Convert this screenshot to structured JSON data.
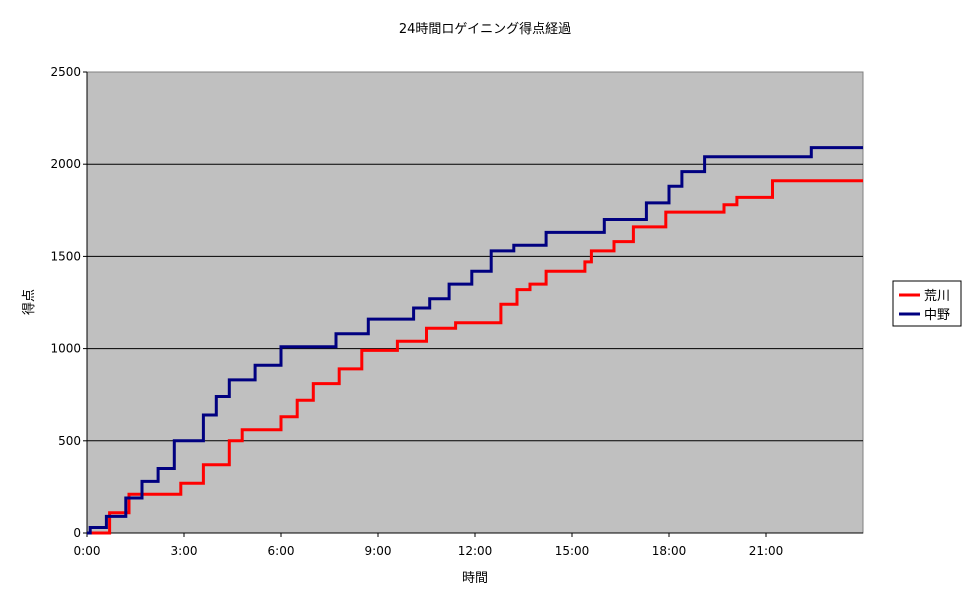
{
  "chart_data": {
    "type": "line",
    "title": "24時間ロゲイニング得点経過",
    "xlabel": "時間",
    "ylabel": "得点",
    "xlim": [
      0,
      24
    ],
    "ylim": [
      0,
      2500
    ],
    "x_ticks": [
      0,
      3,
      6,
      9,
      12,
      15,
      18,
      21
    ],
    "x_tick_labels": [
      "0:00",
      "3:00",
      "6:00",
      "9:00",
      "12:00",
      "15:00",
      "18:00",
      "21:00"
    ],
    "y_ticks": [
      0,
      500,
      1000,
      1500,
      2000,
      2500
    ],
    "y_tick_labels": [
      "0",
      "500",
      "1000",
      "1500",
      "2000",
      "2500"
    ],
    "grid": "horizontal",
    "step": true,
    "plot_background": "#c0c0c0",
    "legend_position": "right",
    "series": [
      {
        "name": "荒川",
        "color": "#ff0000",
        "points": [
          [
            0.0,
            0
          ],
          [
            0.7,
            0
          ],
          [
            0.7,
            110
          ],
          [
            1.3,
            110
          ],
          [
            1.3,
            210
          ],
          [
            2.9,
            210
          ],
          [
            2.9,
            270
          ],
          [
            3.6,
            270
          ],
          [
            3.6,
            370
          ],
          [
            4.4,
            370
          ],
          [
            4.4,
            500
          ],
          [
            4.8,
            500
          ],
          [
            4.8,
            560
          ],
          [
            6.0,
            560
          ],
          [
            6.0,
            630
          ],
          [
            6.5,
            630
          ],
          [
            6.5,
            720
          ],
          [
            7.0,
            720
          ],
          [
            7.0,
            810
          ],
          [
            7.8,
            810
          ],
          [
            7.8,
            890
          ],
          [
            8.5,
            890
          ],
          [
            8.5,
            990
          ],
          [
            9.6,
            990
          ],
          [
            9.6,
            1040
          ],
          [
            10.5,
            1040
          ],
          [
            10.5,
            1110
          ],
          [
            11.4,
            1110
          ],
          [
            11.4,
            1140
          ],
          [
            12.8,
            1140
          ],
          [
            12.8,
            1240
          ],
          [
            13.3,
            1240
          ],
          [
            13.3,
            1320
          ],
          [
            13.7,
            1320
          ],
          [
            13.7,
            1350
          ],
          [
            14.2,
            1350
          ],
          [
            14.2,
            1420
          ],
          [
            15.4,
            1420
          ],
          [
            15.4,
            1470
          ],
          [
            15.6,
            1470
          ],
          [
            15.6,
            1530
          ],
          [
            16.3,
            1530
          ],
          [
            16.3,
            1580
          ],
          [
            16.9,
            1580
          ],
          [
            16.9,
            1660
          ],
          [
            17.9,
            1660
          ],
          [
            17.9,
            1740
          ],
          [
            19.7,
            1740
          ],
          [
            19.7,
            1780
          ],
          [
            20.1,
            1780
          ],
          [
            20.1,
            1820
          ],
          [
            21.2,
            1820
          ],
          [
            21.2,
            1910
          ],
          [
            24.0,
            1910
          ]
        ]
      },
      {
        "name": "中野",
        "color": "#000080",
        "points": [
          [
            0.0,
            0
          ],
          [
            0.1,
            0
          ],
          [
            0.1,
            30
          ],
          [
            0.6,
            30
          ],
          [
            0.6,
            90
          ],
          [
            1.2,
            90
          ],
          [
            1.2,
            190
          ],
          [
            1.7,
            190
          ],
          [
            1.7,
            280
          ],
          [
            2.2,
            280
          ],
          [
            2.2,
            350
          ],
          [
            2.7,
            350
          ],
          [
            2.7,
            500
          ],
          [
            3.6,
            500
          ],
          [
            3.6,
            640
          ],
          [
            4.0,
            640
          ],
          [
            4.0,
            740
          ],
          [
            4.4,
            740
          ],
          [
            4.4,
            830
          ],
          [
            5.2,
            830
          ],
          [
            5.2,
            910
          ],
          [
            6.0,
            910
          ],
          [
            6.0,
            1010
          ],
          [
            7.7,
            1010
          ],
          [
            7.7,
            1080
          ],
          [
            8.7,
            1080
          ],
          [
            8.7,
            1160
          ],
          [
            10.1,
            1160
          ],
          [
            10.1,
            1220
          ],
          [
            10.6,
            1220
          ],
          [
            10.6,
            1270
          ],
          [
            11.2,
            1270
          ],
          [
            11.2,
            1350
          ],
          [
            11.9,
            1350
          ],
          [
            11.9,
            1420
          ],
          [
            12.5,
            1420
          ],
          [
            12.5,
            1530
          ],
          [
            13.2,
            1530
          ],
          [
            13.2,
            1560
          ],
          [
            14.2,
            1560
          ],
          [
            14.2,
            1630
          ],
          [
            16.0,
            1630
          ],
          [
            16.0,
            1700
          ],
          [
            17.3,
            1700
          ],
          [
            17.3,
            1790
          ],
          [
            18.0,
            1790
          ],
          [
            18.0,
            1880
          ],
          [
            18.4,
            1880
          ],
          [
            18.4,
            1960
          ],
          [
            19.1,
            1960
          ],
          [
            19.1,
            2040
          ],
          [
            22.4,
            2040
          ],
          [
            22.4,
            2090
          ],
          [
            24.0,
            2090
          ]
        ]
      }
    ]
  }
}
